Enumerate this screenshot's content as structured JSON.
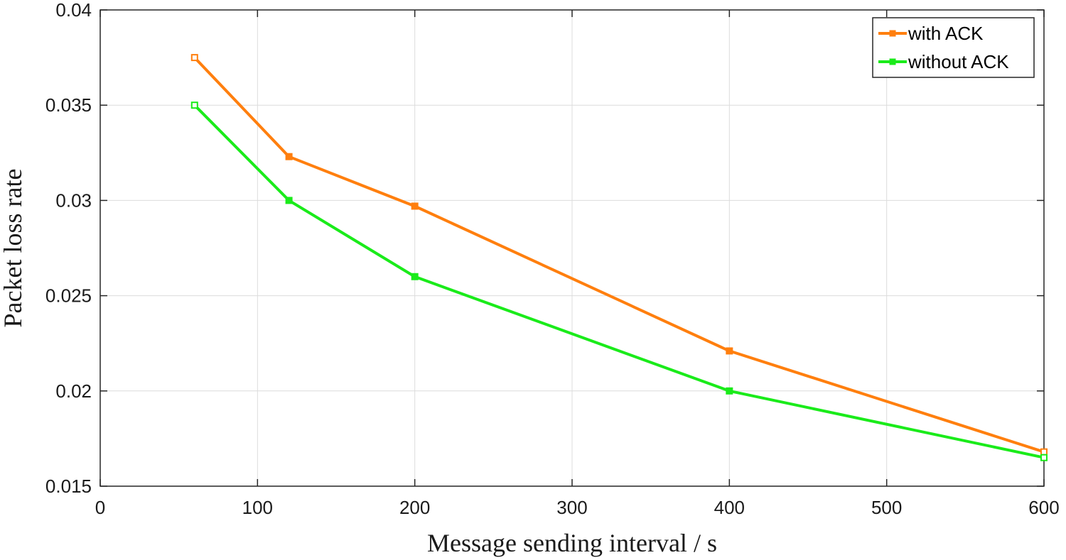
{
  "chart_data": {
    "type": "line",
    "xlabel": "Message sending interval / s",
    "ylabel": "Packet loss rate",
    "xlim": [
      0,
      600
    ],
    "ylim": [
      0.015,
      0.04
    ],
    "x_ticks": [
      "0",
      "100",
      "200",
      "300",
      "400",
      "500",
      "600"
    ],
    "y_ticks": [
      "0.015",
      "0.02",
      "0.025",
      "0.03",
      "0.035",
      "0.04"
    ],
    "x_tick_values": [
      0,
      100,
      200,
      300,
      400,
      500,
      600
    ],
    "y_tick_values": [
      0.015,
      0.02,
      0.025,
      0.03,
      0.035,
      0.04
    ],
    "grid": true,
    "legend_position": "top-right",
    "series": [
      {
        "name": "with ACK",
        "color": "#ff7f0e",
        "x": [
          60,
          120,
          200,
          400,
          600
        ],
        "y": [
          0.0375,
          0.0323,
          0.0297,
          0.0221,
          0.0168
        ]
      },
      {
        "name": "without ACK",
        "color": "#1aeb1a",
        "x": [
          60,
          120,
          200,
          400,
          600
        ],
        "y": [
          0.035,
          0.03,
          0.026,
          0.02,
          0.0165
        ]
      }
    ]
  }
}
